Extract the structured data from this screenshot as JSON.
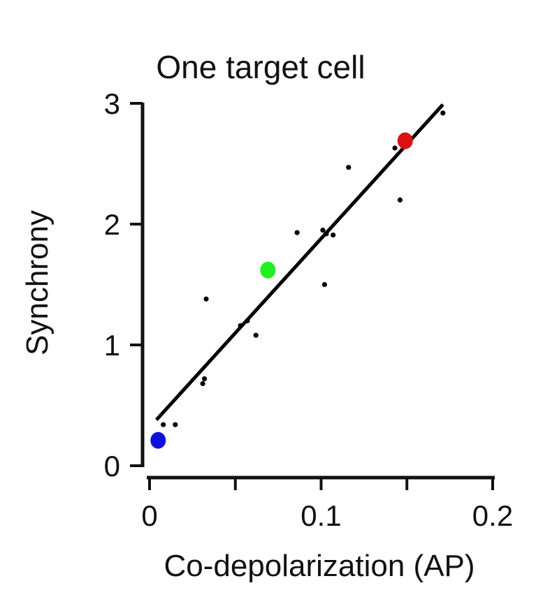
{
  "chart_data": {
    "type": "scatter",
    "title": "One target cell",
    "xlabel": "Co-depolarization (AP)",
    "ylabel": "Synchrony",
    "xlim": [
      0,
      0.2
    ],
    "ylim": [
      0,
      3
    ],
    "xticks": [
      0,
      0.05,
      0.1,
      0.15,
      0.2
    ],
    "xtick_labels": [
      "0",
      "",
      "0.1",
      "",
      "0.2"
    ],
    "yticks": [
      0,
      1,
      2,
      3
    ],
    "ytick_labels": [
      "0",
      "1",
      "2",
      "3"
    ],
    "grid": false,
    "legend": "none",
    "series": [
      {
        "color": "#000000",
        "marker_size": "small",
        "x": [
          0.008,
          0.015,
          0.031,
          0.032,
          0.033,
          0.053,
          0.057,
          0.062,
          0.086,
          0.101,
          0.102,
          0.103,
          0.107,
          0.116,
          0.143,
          0.146,
          0.171
        ],
        "y": [
          0.34,
          0.34,
          0.68,
          0.72,
          1.38,
          1.16,
          1.2,
          1.08,
          1.93,
          1.95,
          1.5,
          1.92,
          1.91,
          2.47,
          2.63,
          2.2,
          2.92
        ]
      },
      {
        "color": "#1111dd",
        "marker_size": "large",
        "x": [
          0.005
        ],
        "y": [
          0.21
        ]
      },
      {
        "color": "#22ee22",
        "marker_size": "large",
        "x": [
          0.069
        ],
        "y": [
          1.62
        ]
      },
      {
        "color": "#dd1111",
        "marker_size": "large",
        "x": [
          0.149
        ],
        "y": [
          2.69
        ]
      }
    ],
    "fit_line": {
      "x": [
        0.004,
        0.171
      ],
      "y": [
        0.38,
        2.99
      ],
      "color": "#000000"
    }
  }
}
